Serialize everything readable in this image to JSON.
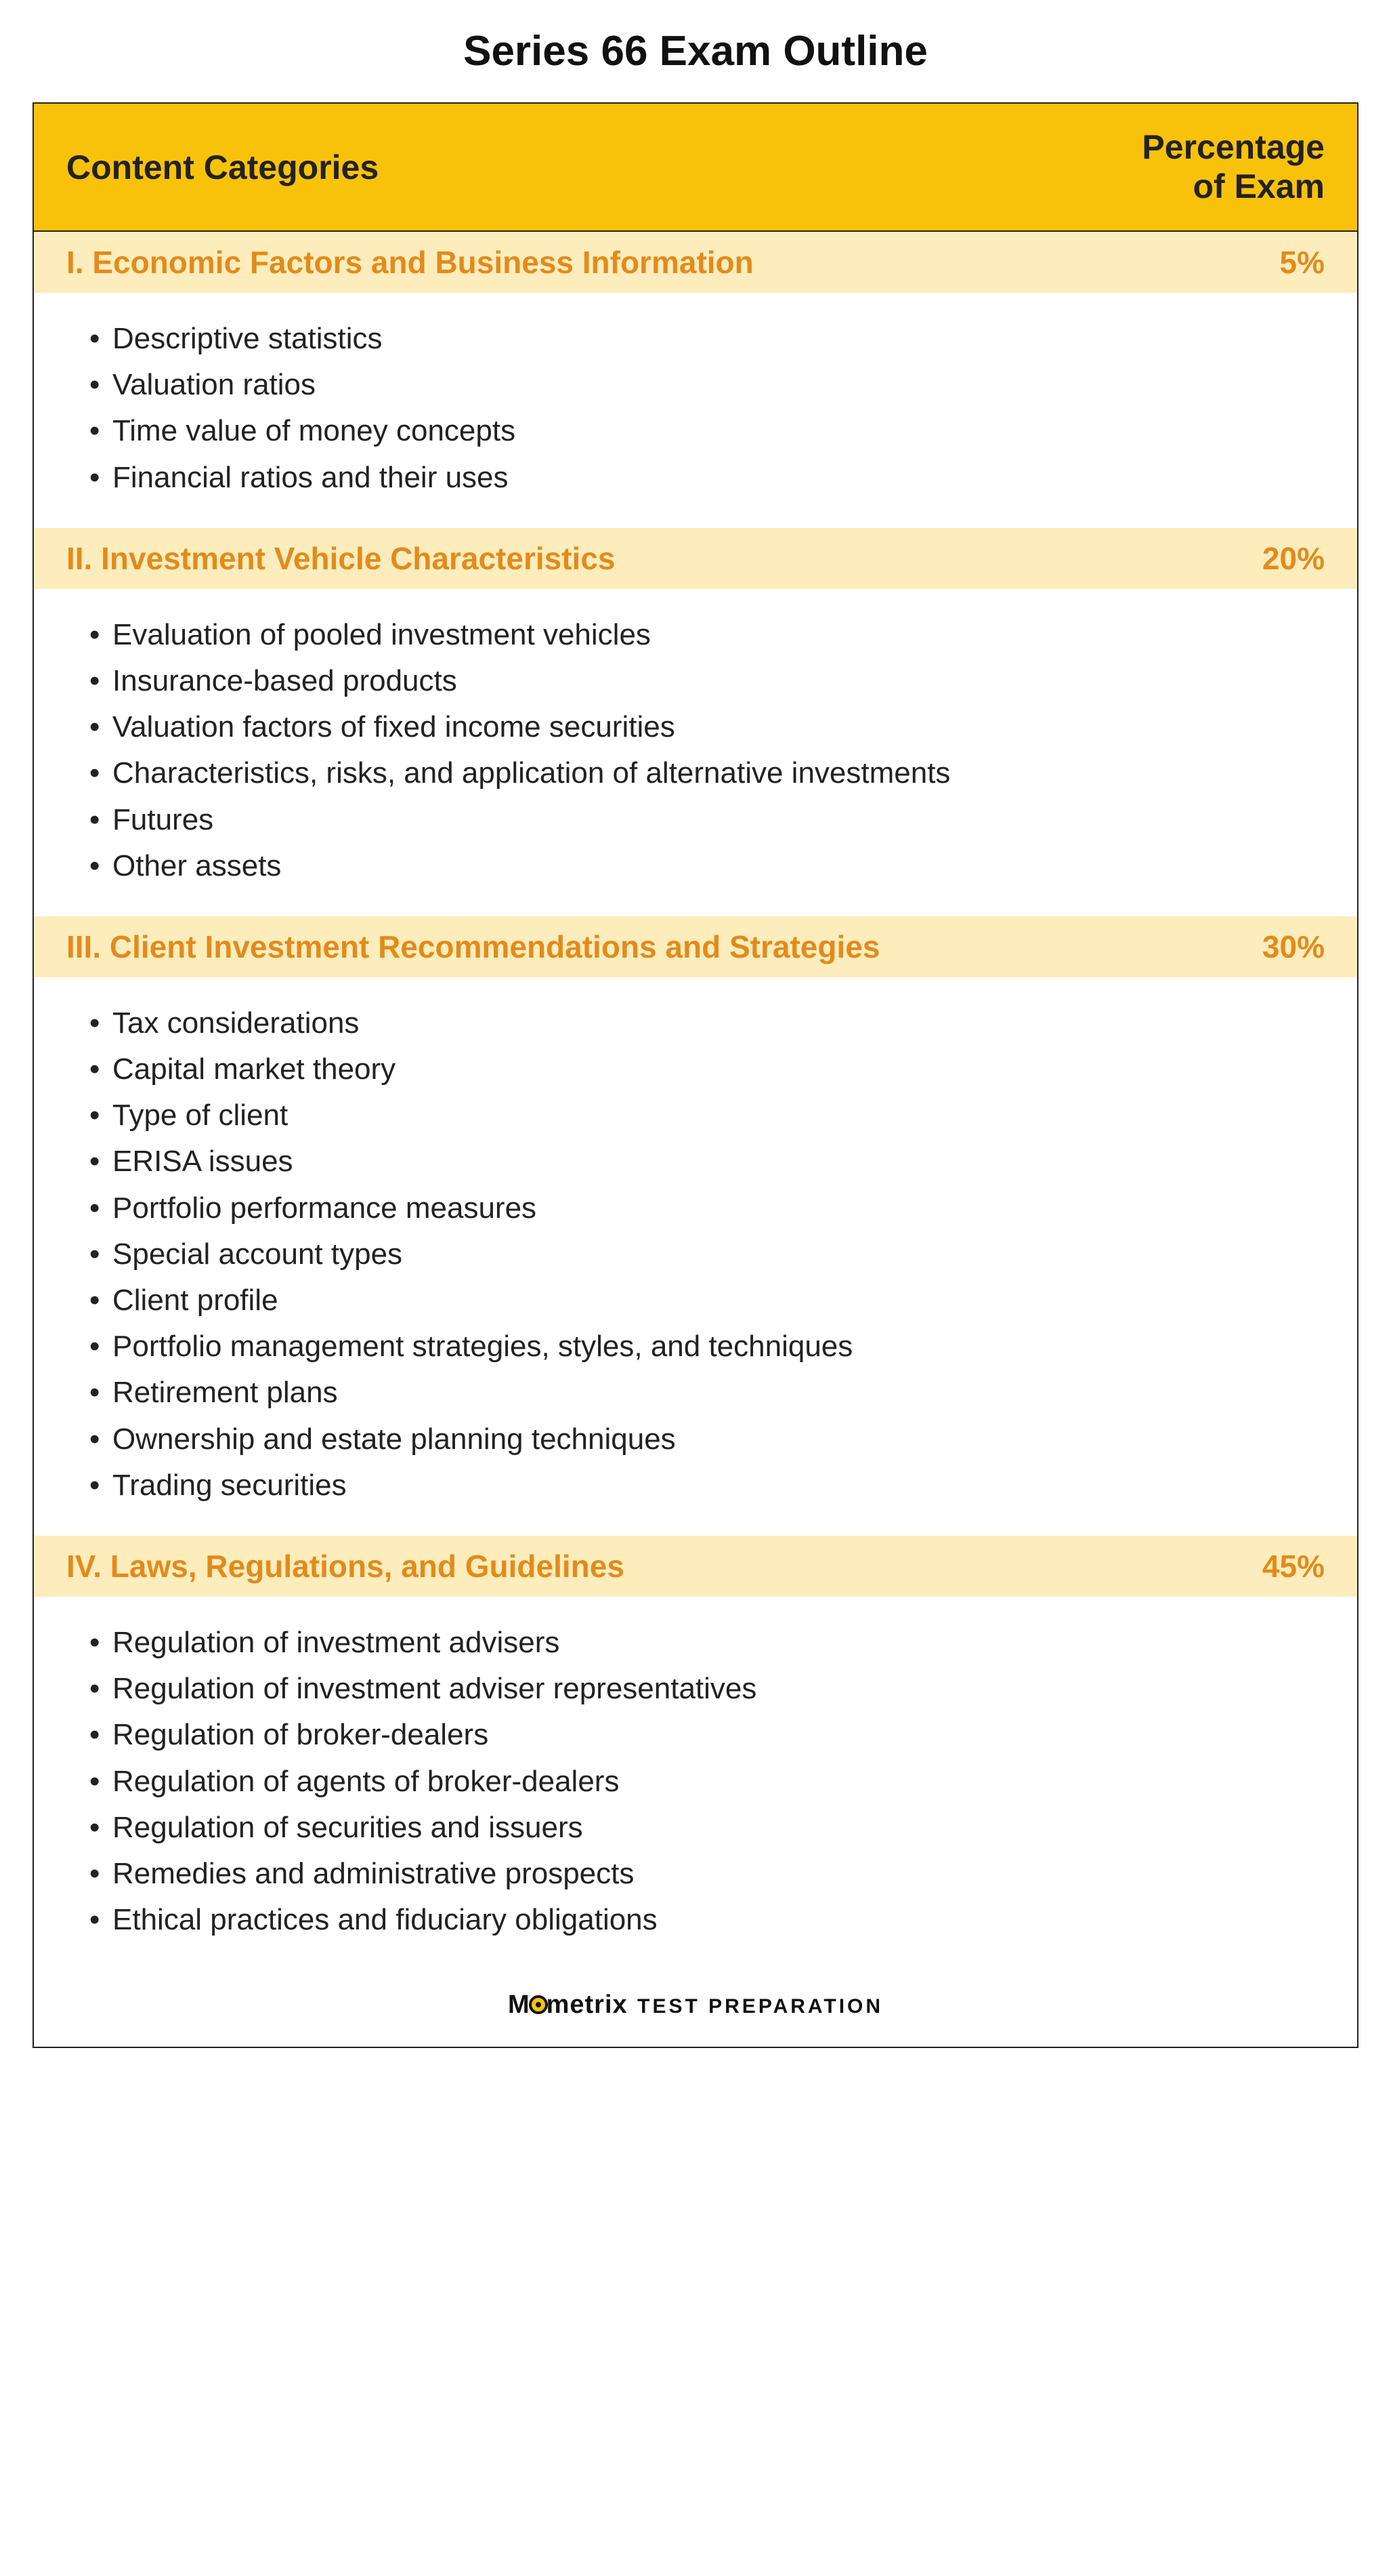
{
  "title": "Series 66 Exam Outline",
  "colors": {
    "header_bg": "#f9c20a",
    "section_bg": "#fdedbd",
    "section_text": "#e28b1b",
    "body_text": "#222222",
    "border": "#222222",
    "background": "#ffffff"
  },
  "typography": {
    "title_fontsize": 62,
    "header_fontsize": 50,
    "section_fontsize": 46,
    "item_fontsize": 44,
    "footer_brand_fontsize": 38,
    "footer_sub_fontsize": 30
  },
  "header": {
    "left": "Content Categories",
    "right_line1": "Percentage",
    "right_line2": "of Exam"
  },
  "sections": [
    {
      "title": "I. Economic Factors and Business Information",
      "pct": "5%",
      "items": [
        "Descriptive statistics",
        "Valuation ratios",
        "Time value of money concepts",
        "Financial ratios and their uses"
      ]
    },
    {
      "title": "II. Investment Vehicle Characteristics",
      "pct": "20%",
      "items": [
        "Evaluation of pooled investment vehicles",
        "Insurance-based products",
        "Valuation factors of fixed income securities",
        "Characteristics, risks, and application of alternative investments",
        "Futures",
        "Other assets"
      ]
    },
    {
      "title": "III. Client Investment Recommendations and Strategies",
      "pct": "30%",
      "items": [
        "Tax considerations",
        "Capital market theory",
        "Type of client",
        "ERISA issues",
        "Portfolio performance measures",
        "Special account types",
        "Client profile",
        "Portfolio management strategies, styles, and techniques",
        "Retirement plans",
        "Ownership and estate planning techniques",
        "Trading securities"
      ]
    },
    {
      "title": "IV. Laws, Regulations, and Guidelines",
      "pct": "45%",
      "items": [
        "Regulation of investment advisers",
        "Regulation of investment adviser representatives",
        "Regulation of broker-dealers",
        "Regulation of agents of broker-dealers",
        "Regulation of securities and issuers",
        "Remedies and administrative prospects",
        "Ethical practices and fiduciary obligations"
      ]
    }
  ],
  "footer": {
    "brand_pre": "M",
    "brand_post": "metrix",
    "sub": "TEST  PREPARATION"
  }
}
